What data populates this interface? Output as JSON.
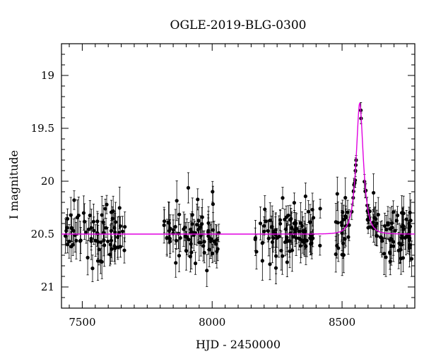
{
  "chart_data": {
    "type": "scatter",
    "title": "OGLE-2019-BLG-0300",
    "xlabel": "HJD - 2450000",
    "ylabel": "I magnitude",
    "xlim": [
      7420,
      8780
    ],
    "ylim": [
      21.2,
      18.7
    ],
    "y_inverted": true,
    "x_ticks": [
      7500,
      8000,
      8500
    ],
    "y_ticks": [
      19,
      19.5,
      20,
      20.5,
      21
    ],
    "grid": false,
    "legend": "none",
    "colors": {
      "points": "#000000",
      "model": "#e000e0"
    },
    "model": {
      "type": "microlensing",
      "baseline_mag": 20.5,
      "peak_time": 8568,
      "peak_mag": 19.26,
      "einstein_time_days": 25,
      "impact_parameter": 0.45
    },
    "seasons": [
      {
        "start": 7430,
        "end": 7665,
        "n": 72
      },
      {
        "start": 7805,
        "end": 8035,
        "n": 70
      },
      {
        "start": 8165,
        "end": 8420,
        "n": 85
      },
      {
        "start": 8470,
        "end": 8770,
        "n": 110
      }
    ],
    "error_bar_mag": [
      0.08,
      0.2
    ],
    "scatter_mag": 0.13
  }
}
